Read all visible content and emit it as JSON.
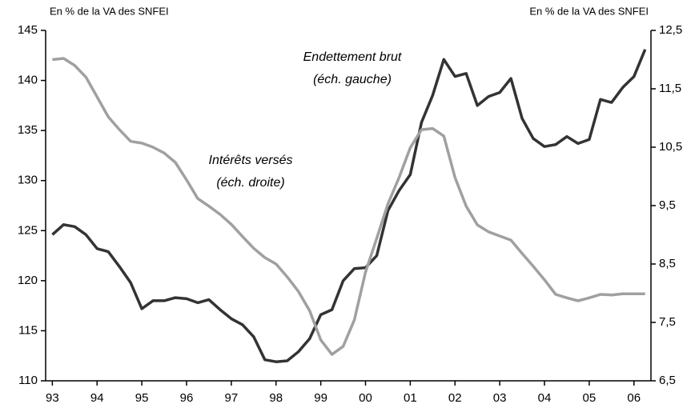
{
  "chart_data": {
    "type": "line",
    "ylabel": "En % de la VA des SNFEI",
    "y2label": "En % de la VA des SNFEI",
    "annotations": [
      "Endettement brut",
      "(éch. gauche)",
      "Intérêts versés",
      "(éch. droite)"
    ],
    "x": [
      1993,
      1993.25,
      1993.5,
      1993.75,
      1994,
      1994.25,
      1994.5,
      1994.75,
      1995,
      1995.25,
      1995.5,
      1995.75,
      1996,
      1996.25,
      1996.5,
      1996.75,
      1997,
      1997.25,
      1997.5,
      1997.75,
      1998,
      1998.25,
      1998.5,
      1998.75,
      1999,
      1999.25,
      1999.5,
      1999.75,
      2000,
      2000.25,
      2000.5,
      2000.75,
      2001,
      2001.25,
      2001.5,
      2001.75,
      2002,
      2002.25,
      2002.5,
      2002.75,
      2003,
      2003.25,
      2003.5,
      2003.75,
      2004,
      2004.25,
      2004.5,
      2004.75,
      2005,
      2005.25,
      2005.5,
      2005.75,
      2006,
      2006.25
    ],
    "xlim": [
      1992.85,
      2006.38
    ],
    "xticks": [
      {
        "value": 1993,
        "label": "93"
      },
      {
        "value": 1994,
        "label": "94"
      },
      {
        "value": 1995,
        "label": "95"
      },
      {
        "value": 1996,
        "label": "96"
      },
      {
        "value": 1997,
        "label": "97"
      },
      {
        "value": 1998,
        "label": "98"
      },
      {
        "value": 1999,
        "label": "99"
      },
      {
        "value": 2000,
        "label": "00"
      },
      {
        "value": 2001,
        "label": "01"
      },
      {
        "value": 2002,
        "label": "02"
      },
      {
        "value": 2003,
        "label": "03"
      },
      {
        "value": 2004,
        "label": "04"
      },
      {
        "value": 2005,
        "label": "05"
      },
      {
        "value": 2006,
        "label": "06"
      }
    ],
    "ylim": [
      110,
      145
    ],
    "yticks": [
      110,
      115,
      120,
      125,
      130,
      135,
      140,
      145
    ],
    "y2lim": [
      6.5,
      12.5
    ],
    "y2ticks": [
      {
        "value": 6.5,
        "label": "6,5"
      },
      {
        "value": 7.5,
        "label": "7,5"
      },
      {
        "value": 8.5,
        "label": "8,5"
      },
      {
        "value": 9.5,
        "label": "9,5"
      },
      {
        "value": 10.5,
        "label": "10,5"
      },
      {
        "value": 11.5,
        "label": "11,5"
      },
      {
        "value": 12.5,
        "label": "12,5"
      }
    ],
    "series": [
      {
        "color": "#333333",
        "axis": "y",
        "values": [
          124.6,
          125.6,
          125.4,
          124.6,
          123.2,
          122.9,
          121.4,
          119.8,
          117.2,
          118.0,
          118.0,
          118.3,
          118.2,
          117.8,
          118.1,
          117.1,
          116.2,
          115.6,
          114.4,
          112.1,
          111.9,
          112.0,
          112.9,
          114.2,
          116.6,
          117.1,
          120.0,
          121.2,
          121.3,
          122.5,
          127.0,
          129.0,
          130.6,
          135.8,
          138.5,
          142.1,
          140.4,
          140.7,
          137.5,
          138.4,
          138.8,
          140.2,
          136.2,
          134.2,
          133.4,
          133.6,
          134.4,
          133.7,
          134.1,
          138.1,
          137.8,
          139.3,
          140.4,
          143.1
        ]
      },
      {
        "color": "#a0a0a0",
        "axis": "y2",
        "values": [
          12.0,
          12.02,
          11.9,
          11.7,
          11.36,
          11.02,
          10.8,
          10.6,
          10.57,
          10.5,
          10.4,
          10.24,
          9.94,
          9.62,
          9.49,
          9.35,
          9.18,
          8.97,
          8.77,
          8.61,
          8.5,
          8.28,
          8.03,
          7.7,
          7.2,
          6.95,
          7.09,
          7.54,
          8.36,
          8.94,
          9.53,
          9.98,
          10.49,
          10.8,
          10.82,
          10.69,
          9.98,
          9.49,
          9.17,
          9.05,
          8.98,
          8.91,
          8.68,
          8.46,
          8.23,
          7.98,
          7.92,
          7.87,
          7.92,
          7.98,
          7.97,
          7.99,
          7.99,
          7.99
        ]
      }
    ]
  }
}
